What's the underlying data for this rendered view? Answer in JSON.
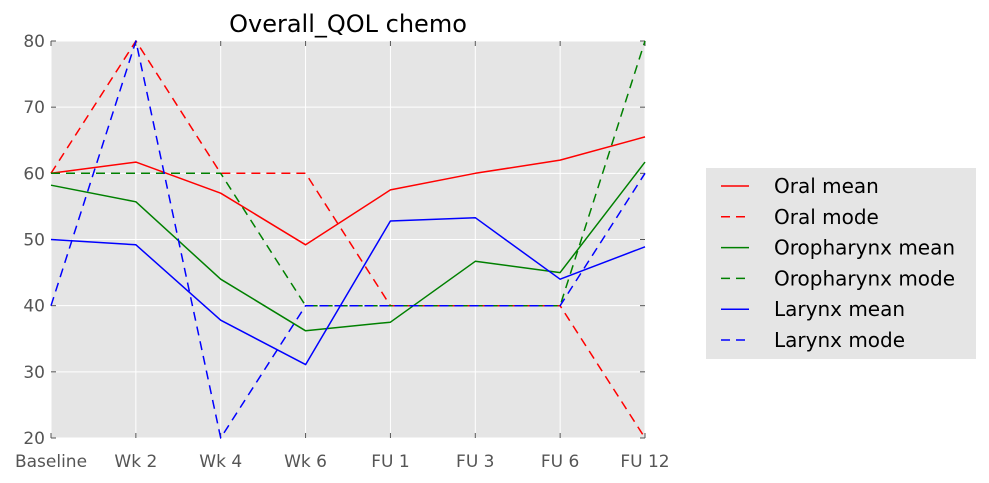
{
  "chart_data": {
    "type": "line",
    "title": "Overall_QOL chemo",
    "xlabel": "",
    "ylabel": "",
    "categories": [
      "Baseline",
      "Wk 2",
      "Wk 4",
      "Wk 6",
      "FU 1",
      "FU 3",
      "FU 6",
      "FU 12"
    ],
    "ylim": [
      20,
      80
    ],
    "yticks": [
      20,
      30,
      40,
      50,
      60,
      70,
      80
    ],
    "grid": true,
    "legend_placement": "right",
    "series": [
      {
        "name": "Oral mean",
        "color": "#ff0000",
        "dash": "solid",
        "values": [
          60,
          61.7,
          57,
          49.2,
          57.5,
          60,
          62,
          65.5
        ]
      },
      {
        "name": "Oral mode",
        "color": "#ff0000",
        "dash": "dashed",
        "values": [
          60,
          80,
          60,
          60,
          40,
          40,
          40,
          20
        ]
      },
      {
        "name": "Oropharynx mean",
        "color": "#008000",
        "dash": "solid",
        "values": [
          58.2,
          55.7,
          44,
          36.2,
          37.5,
          46.7,
          45,
          61.7
        ]
      },
      {
        "name": "Oropharynx mode",
        "color": "#008000",
        "dash": "dashed",
        "values": [
          60,
          60,
          60,
          40,
          40,
          40,
          40,
          80
        ]
      },
      {
        "name": "Larynx mean",
        "color": "#0000ff",
        "dash": "solid",
        "values": [
          50,
          49.2,
          37.8,
          31.1,
          52.8,
          53.3,
          44,
          48.9
        ]
      },
      {
        "name": "Larynx mode",
        "color": "#0000ff",
        "dash": "dashed",
        "values": [
          40,
          80,
          20,
          40,
          40,
          40,
          40,
          60
        ]
      }
    ]
  }
}
